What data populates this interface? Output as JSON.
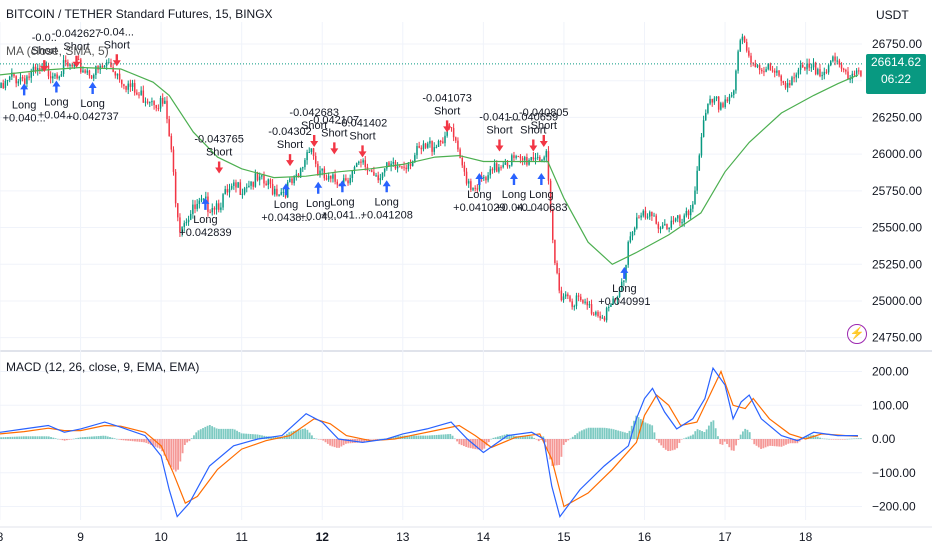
{
  "header": {
    "title": "BITCOIN / TETHER Standard Futures, 15, BINGX",
    "indicator_ma": "MA (close, SMA, 5)",
    "currency": "USDT"
  },
  "price_quote": {
    "price": "26614.62",
    "countdown": "06:22"
  },
  "colors": {
    "up": "#089981",
    "down": "#f23645",
    "ma": "#4caf50",
    "macd": "#2962ff",
    "signal": "#ff6d00",
    "hist_up": "#26a69a",
    "hist_down": "#ef5350",
    "long_arrow": "#2962ff",
    "short_arrow": "#f23645"
  },
  "chart_data": [
    {
      "type": "candlestick",
      "title": "BITCOIN / TETHER Standard Futures, 15, BINGX",
      "y_ticks": [
        "26750.00",
        "26500.00",
        "26250.00",
        "26000.00",
        "25750.00",
        "25500.00",
        "25250.00",
        "25000.00",
        "24750.00"
      ],
      "ylim": [
        24700,
        26900
      ],
      "x_ticks": [
        {
          "label": "8",
          "x": 8
        },
        {
          "label": "9",
          "x": 9
        },
        {
          "label": "10",
          "x": 10
        },
        {
          "label": "11",
          "x": 11
        },
        {
          "label": "12",
          "x": 12
        },
        {
          "label": "13",
          "x": 13
        },
        {
          "label": "14",
          "x": 14
        },
        {
          "label": "15",
          "x": 15
        },
        {
          "label": "16",
          "x": 16
        },
        {
          "label": "17",
          "x": 17
        },
        {
          "label": "18",
          "x": 18
        }
      ],
      "xlim": [
        8,
        18.7
      ],
      "price_path": [
        [
          8.0,
          26450
        ],
        [
          8.15,
          26550
        ],
        [
          8.35,
          26560
        ],
        [
          8.55,
          26590
        ],
        [
          8.75,
          26610
        ],
        [
          9.0,
          26620
        ],
        [
          9.2,
          26580
        ],
        [
          9.35,
          26650
        ],
        [
          9.5,
          26560
        ],
        [
          9.7,
          26430
        ],
        [
          9.9,
          26420
        ],
        [
          10.05,
          26350
        ],
        [
          10.1,
          26150
        ],
        [
          10.18,
          25750
        ],
        [
          10.23,
          25550
        ],
        [
          10.3,
          25600
        ],
        [
          10.5,
          25680
        ],
        [
          10.7,
          25700
        ],
        [
          10.9,
          25780
        ],
        [
          11.1,
          25850
        ],
        [
          11.3,
          25820
        ],
        [
          11.5,
          25780
        ],
        [
          11.7,
          25850
        ],
        [
          11.85,
          26120
        ],
        [
          11.95,
          25900
        ],
        [
          12.1,
          25830
        ],
        [
          12.3,
          25880
        ],
        [
          12.5,
          25950
        ],
        [
          12.7,
          25900
        ],
        [
          12.9,
          25930
        ],
        [
          13.1,
          26000
        ],
        [
          13.3,
          26070
        ],
        [
          13.5,
          26150
        ],
        [
          13.6,
          26200
        ],
        [
          13.7,
          25980
        ],
        [
          13.85,
          25820
        ],
        [
          14.05,
          25850
        ],
        [
          14.25,
          26000
        ],
        [
          14.45,
          25970
        ],
        [
          14.65,
          26030
        ],
        [
          14.78,
          26000
        ],
        [
          14.82,
          25700
        ],
        [
          14.88,
          25300
        ],
        [
          14.95,
          25100
        ],
        [
          15.1,
          25050
        ],
        [
          15.3,
          24980
        ],
        [
          15.5,
          24950
        ],
        [
          15.65,
          25010
        ],
        [
          15.75,
          25200
        ],
        [
          15.8,
          25450
        ],
        [
          15.9,
          25600
        ],
        [
          16.1,
          25580
        ],
        [
          16.3,
          25550
        ],
        [
          16.5,
          25560
        ],
        [
          16.6,
          25700
        ],
        [
          16.7,
          26150
        ],
        [
          16.8,
          26350
        ],
        [
          16.95,
          26380
        ],
        [
          17.1,
          26450
        ],
        [
          17.2,
          26820
        ],
        [
          17.3,
          26680
        ],
        [
          17.5,
          26620
        ],
        [
          17.7,
          26520
        ],
        [
          17.9,
          26580
        ],
        [
          18.1,
          26600
        ],
        [
          18.3,
          26650
        ],
        [
          18.5,
          26580
        ],
        [
          18.65,
          26615
        ]
      ],
      "ma_path": [
        [
          8.0,
          26540
        ],
        [
          8.5,
          26570
        ],
        [
          9.0,
          26590
        ],
        [
          9.5,
          26580
        ],
        [
          9.9,
          26490
        ],
        [
          10.1,
          26400
        ],
        [
          10.4,
          26150
        ],
        [
          10.7,
          25980
        ],
        [
          11.0,
          25900
        ],
        [
          11.4,
          25840
        ],
        [
          11.8,
          25850
        ],
        [
          12.2,
          25880
        ],
        [
          12.6,
          25900
        ],
        [
          13.0,
          25930
        ],
        [
          13.4,
          25980
        ],
        [
          13.7,
          25990
        ],
        [
          14.0,
          25950
        ],
        [
          14.4,
          25950
        ],
        [
          14.8,
          25950
        ],
        [
          15.0,
          25700
        ],
        [
          15.3,
          25400
        ],
        [
          15.6,
          25250
        ],
        [
          15.9,
          25330
        ],
        [
          16.3,
          25450
        ],
        [
          16.7,
          25600
        ],
        [
          17.0,
          25880
        ],
        [
          17.3,
          26080
        ],
        [
          17.7,
          26280
        ],
        [
          18.1,
          26400
        ],
        [
          18.4,
          26480
        ],
        [
          18.65,
          26540
        ]
      ],
      "current_price": 26614.62,
      "signals": [
        {
          "type": "long",
          "x": 8.3,
          "y": 26400,
          "labels": [
            "Long",
            "+0.040..."
          ]
        },
        {
          "type": "short",
          "x": 8.55,
          "y": 26640,
          "labels": [
            "-0.0..",
            "Short"
          ]
        },
        {
          "type": "long",
          "x": 8.7,
          "y": 26420,
          "labels": [
            "Long",
            "+0.04..."
          ]
        },
        {
          "type": "short",
          "x": 8.95,
          "y": 26670,
          "labels": [
            "-0.042627",
            "Short"
          ]
        },
        {
          "type": "long",
          "x": 9.15,
          "y": 26410,
          "labels": [
            "Long",
            "+0.042737"
          ]
        },
        {
          "type": "short",
          "x": 9.45,
          "y": 26680,
          "labels": [
            "-0.04...",
            "Short"
          ]
        },
        {
          "type": "long",
          "x": 10.55,
          "y": 25620,
          "labels": [
            "Long",
            "+0.042839"
          ]
        },
        {
          "type": "short",
          "x": 10.72,
          "y": 25950,
          "labels": [
            "-0.043765",
            "Short"
          ]
        },
        {
          "type": "long",
          "x": 11.55,
          "y": 25720,
          "labels": [
            "Long",
            "+0.0438..."
          ]
        },
        {
          "type": "short",
          "x": 11.6,
          "y": 26000,
          "labels": [
            "-0.04302",
            "Short"
          ]
        },
        {
          "type": "short",
          "x": 11.9,
          "y": 26130,
          "labels": [
            "-0.042683",
            "Short"
          ]
        },
        {
          "type": "long",
          "x": 11.95,
          "y": 25730,
          "labels": [
            "Long",
            "+0.04..."
          ]
        },
        {
          "type": "short",
          "x": 12.15,
          "y": 26080,
          "labels": [
            "-0.042107",
            "Short"
          ]
        },
        {
          "type": "long",
          "x": 12.25,
          "y": 25740,
          "labels": [
            "Long",
            "+0.041..."
          ]
        },
        {
          "type": "short",
          "x": 12.5,
          "y": 26060,
          "labels": [
            "-0.041402",
            "Short"
          ]
        },
        {
          "type": "long",
          "x": 12.8,
          "y": 25740,
          "labels": [
            "Long",
            "+0.041208"
          ]
        },
        {
          "type": "short",
          "x": 13.55,
          "y": 26230,
          "labels": [
            "-0.041073",
            "Short"
          ]
        },
        {
          "type": "long",
          "x": 13.95,
          "y": 25790,
          "labels": [
            "Long",
            "+0.041029"
          ]
        },
        {
          "type": "short",
          "x": 14.2,
          "y": 26100,
          "labels": [
            "-0.041...",
            "Short"
          ]
        },
        {
          "type": "long",
          "x": 14.38,
          "y": 25790,
          "labels": [
            "Long",
            "+0.04..."
          ]
        },
        {
          "type": "short",
          "x": 14.62,
          "y": 26100,
          "labels": [
            "-0.040659",
            "Short"
          ]
        },
        {
          "type": "long",
          "x": 14.72,
          "y": 25790,
          "labels": [
            "Long",
            "+0.040683"
          ]
        },
        {
          "type": "short",
          "x": 14.75,
          "y": 26130,
          "labels": [
            "-0.040805",
            "Short"
          ]
        },
        {
          "type": "long",
          "x": 15.75,
          "y": 25150,
          "labels": [
            "Long",
            "+0.040991"
          ]
        }
      ]
    },
    {
      "type": "line",
      "title": "MACD (12, 26, close, 9, EMA, EMA)",
      "y_ticks": [
        "200.00",
        "100.00",
        "0.00",
        "−100.00",
        "−200.00"
      ],
      "ylim": [
        -240,
        240
      ],
      "xlim": [
        8,
        18.7
      ],
      "series": [
        {
          "name": "MACD",
          "values": [
            [
              8.0,
              20
            ],
            [
              8.3,
              30
            ],
            [
              8.6,
              40
            ],
            [
              8.8,
              20
            ],
            [
              9.0,
              30
            ],
            [
              9.3,
              50
            ],
            [
              9.5,
              35
            ],
            [
              9.8,
              10
            ],
            [
              10.0,
              -50
            ],
            [
              10.1,
              -150
            ],
            [
              10.2,
              -230
            ],
            [
              10.35,
              -190
            ],
            [
              10.6,
              -80
            ],
            [
              10.9,
              -20
            ],
            [
              11.2,
              0
            ],
            [
              11.5,
              10
            ],
            [
              11.8,
              75
            ],
            [
              12.0,
              50
            ],
            [
              12.2,
              0
            ],
            [
              12.5,
              -10
            ],
            [
              12.8,
              0
            ],
            [
              13.0,
              15
            ],
            [
              13.3,
              30
            ],
            [
              13.6,
              50
            ],
            [
              13.8,
              0
            ],
            [
              14.0,
              -40
            ],
            [
              14.3,
              10
            ],
            [
              14.6,
              20
            ],
            [
              14.75,
              0
            ],
            [
              14.85,
              -140
            ],
            [
              14.95,
              -230
            ],
            [
              15.2,
              -150
            ],
            [
              15.5,
              -80
            ],
            [
              15.8,
              -20
            ],
            [
              15.9,
              60
            ],
            [
              16.0,
              120
            ],
            [
              16.1,
              150
            ],
            [
              16.25,
              80
            ],
            [
              16.4,
              30
            ],
            [
              16.6,
              60
            ],
            [
              16.75,
              120
            ],
            [
              16.85,
              210
            ],
            [
              17.0,
              160
            ],
            [
              17.1,
              60
            ],
            [
              17.2,
              110
            ],
            [
              17.3,
              130
            ],
            [
              17.45,
              60
            ],
            [
              17.7,
              10
            ],
            [
              17.9,
              -5
            ],
            [
              18.1,
              20
            ],
            [
              18.4,
              10
            ],
            [
              18.65,
              10
            ]
          ]
        },
        {
          "name": "Signal",
          "values": [
            [
              8.0,
              15
            ],
            [
              8.3,
              22
            ],
            [
              8.6,
              32
            ],
            [
              8.8,
              25
            ],
            [
              9.0,
              25
            ],
            [
              9.3,
              40
            ],
            [
              9.5,
              38
            ],
            [
              9.8,
              20
            ],
            [
              10.0,
              -20
            ],
            [
              10.15,
              -100
            ],
            [
              10.3,
              -190
            ],
            [
              10.45,
              -170
            ],
            [
              10.7,
              -90
            ],
            [
              11.0,
              -30
            ],
            [
              11.3,
              -5
            ],
            [
              11.6,
              10
            ],
            [
              11.9,
              60
            ],
            [
              12.1,
              45
            ],
            [
              12.3,
              10
            ],
            [
              12.6,
              -5
            ],
            [
              12.9,
              0
            ],
            [
              13.1,
              10
            ],
            [
              13.4,
              25
            ],
            [
              13.7,
              40
            ],
            [
              13.9,
              10
            ],
            [
              14.1,
              -25
            ],
            [
              14.4,
              5
            ],
            [
              14.7,
              15
            ],
            [
              14.85,
              -60
            ],
            [
              15.0,
              -200
            ],
            [
              15.3,
              -160
            ],
            [
              15.6,
              -90
            ],
            [
              15.9,
              -10
            ],
            [
              16.0,
              70
            ],
            [
              16.15,
              130
            ],
            [
              16.3,
              100
            ],
            [
              16.45,
              40
            ],
            [
              16.65,
              50
            ],
            [
              16.85,
              150
            ],
            [
              16.95,
              200
            ],
            [
              17.1,
              100
            ],
            [
              17.25,
              90
            ],
            [
              17.35,
              120
            ],
            [
              17.55,
              60
            ],
            [
              17.8,
              15
            ],
            [
              18.0,
              0
            ],
            [
              18.2,
              15
            ],
            [
              18.5,
              10
            ],
            [
              18.65,
              8
            ]
          ]
        }
      ]
    }
  ]
}
